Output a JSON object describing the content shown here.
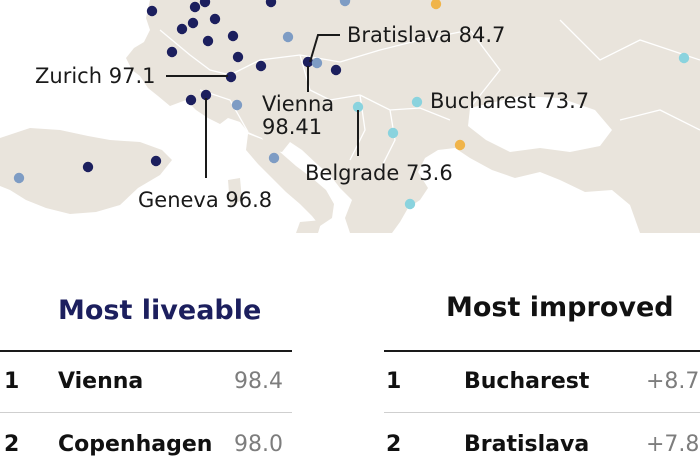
{
  "colors": {
    "sea": "#ffffff",
    "land": "#e9e4dc",
    "border": "#ffffff",
    "marker_top": "#1c1f5e",
    "marker_mid": "#7e9cc4",
    "marker_light": "#8ad3de",
    "marker_orange": "#f0b44a",
    "title_blue": "#1c1f5e"
  },
  "map": {
    "callouts": [
      {
        "city": "Zurich",
        "value": "97.1"
      },
      {
        "city": "Bratislava",
        "value": "84.7"
      },
      {
        "city": "Vienna",
        "value": "98.41"
      },
      {
        "city": "Bucharest",
        "value": "73.7"
      },
      {
        "city": "Geneva",
        "value": "96.8"
      },
      {
        "city": "Belgrade",
        "value": "73.6"
      }
    ]
  },
  "most_liveable": {
    "title": "Most liveable",
    "rows": [
      {
        "rank": "1",
        "city": "Vienna",
        "score": "98.4"
      },
      {
        "rank": "2",
        "city": "Copenhagen",
        "score": "98.0"
      }
    ]
  },
  "most_improved": {
    "title": "Most improved",
    "rows": [
      {
        "rank": "1",
        "city": "Bucharest",
        "score": "+8.7"
      },
      {
        "rank": "2",
        "city": "Bratislava",
        "score": "+7.8"
      }
    ]
  }
}
